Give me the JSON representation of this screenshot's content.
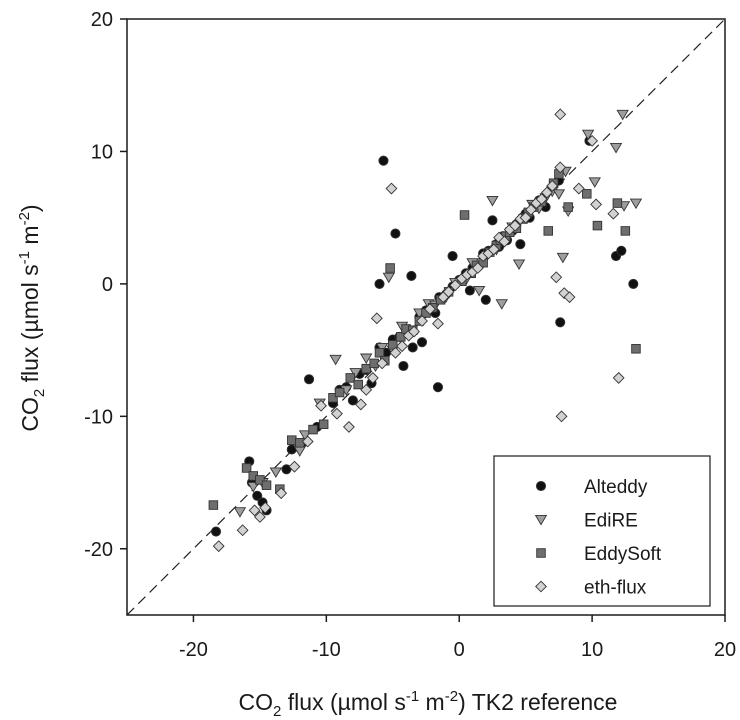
{
  "chart_data": {
    "type": "scatter",
    "xlabel": {
      "pre": "CO",
      "sub": "2",
      "mid1": " flux (µmol s",
      "sup1": "-1",
      "mid2": " m",
      "sup2": "-2",
      "post": ") TK2 reference"
    },
    "ylabel": {
      "pre": "CO",
      "sub": "2",
      "mid1": " flux (µmol s",
      "sup1": "-1",
      "mid2": " m",
      "sup2": "-2",
      "post": ")"
    },
    "xlim": [
      -25,
      20
    ],
    "ylim": [
      -25,
      20
    ],
    "x_ticks": [
      -20,
      -10,
      0,
      10,
      20
    ],
    "y_ticks": [
      -20,
      -10,
      0,
      10,
      20
    ],
    "x_tick_labels": [
      "-20",
      "-10",
      "0",
      "10",
      "20"
    ],
    "y_tick_labels": [
      "-20",
      "-10",
      "0",
      "10",
      "20"
    ],
    "reference_line": {
      "style": "dashed",
      "from": [
        -25,
        -25
      ],
      "to": [
        20,
        20
      ]
    },
    "legend_position": "bottom-right",
    "grid": false,
    "series": [
      {
        "name": "Alteddy",
        "marker": "circle",
        "color": "#111111",
        "points": [
          [
            -18.3,
            -18.7
          ],
          [
            -15.8,
            -13.4
          ],
          [
            -15.6,
            -15.0
          ],
          [
            -15.2,
            -16.0
          ],
          [
            -14.8,
            -16.5
          ],
          [
            -14.5,
            -17.1
          ],
          [
            -13.0,
            -14.0
          ],
          [
            -12.6,
            -12.5
          ],
          [
            -11.8,
            -12.0
          ],
          [
            -11.3,
            -7.2
          ],
          [
            -10.7,
            -10.8
          ],
          [
            -9.5,
            -9.0
          ],
          [
            -9.0,
            -8.0
          ],
          [
            -8.5,
            -7.8
          ],
          [
            -8.0,
            -8.8
          ],
          [
            -7.5,
            -6.8
          ],
          [
            -7.0,
            -6.5
          ],
          [
            -6.6,
            -7.5
          ],
          [
            -6.0,
            0.0
          ],
          [
            -6.0,
            -4.8
          ],
          [
            -5.7,
            9.3
          ],
          [
            -5.5,
            -5.2
          ],
          [
            -5.0,
            -4.2
          ],
          [
            -4.8,
            3.8
          ],
          [
            -4.5,
            -4.0
          ],
          [
            -4.2,
            -6.2
          ],
          [
            -4.0,
            -3.5
          ],
          [
            -3.6,
            0.6
          ],
          [
            -3.5,
            -4.8
          ],
          [
            -3.0,
            -2.5
          ],
          [
            -2.8,
            -4.4
          ],
          [
            -2.5,
            -2.0
          ],
          [
            -2.0,
            -1.8
          ],
          [
            -1.8,
            -2.2
          ],
          [
            -1.6,
            -7.8
          ],
          [
            -1.5,
            -1.0
          ],
          [
            -1.0,
            -0.8
          ],
          [
            -0.5,
            2.1
          ],
          [
            -0.5,
            -0.2
          ],
          [
            0.0,
            0.3
          ],
          [
            0.5,
            0.8
          ],
          [
            0.8,
            -0.5
          ],
          [
            1.0,
            1.2
          ],
          [
            1.5,
            1.4
          ],
          [
            1.8,
            2.3
          ],
          [
            2.0,
            -1.2
          ],
          [
            2.2,
            2.5
          ],
          [
            2.5,
            4.8
          ],
          [
            2.8,
            3.0
          ],
          [
            3.0,
            2.8
          ],
          [
            3.3,
            3.6
          ],
          [
            3.6,
            3.3
          ],
          [
            4.0,
            4.0
          ],
          [
            4.3,
            4.5
          ],
          [
            4.6,
            3.0
          ],
          [
            5.0,
            5.3
          ],
          [
            5.3,
            5.0
          ],
          [
            5.6,
            5.8
          ],
          [
            6.0,
            6.3
          ],
          [
            6.5,
            5.8
          ],
          [
            7.0,
            7.2
          ],
          [
            7.5,
            7.8
          ],
          [
            7.6,
            -2.9
          ],
          [
            9.8,
            10.8
          ],
          [
            11.8,
            2.1
          ],
          [
            12.2,
            2.5
          ],
          [
            13.1,
            0.0
          ]
        ]
      },
      {
        "name": "EdiRE",
        "marker": "triangle-down",
        "color": "#9e9e9e",
        "points": [
          [
            -16.5,
            -17.2
          ],
          [
            -15.5,
            -15.3
          ],
          [
            -14.8,
            -15.0
          ],
          [
            -13.8,
            -14.2
          ],
          [
            -12.0,
            -12.6
          ],
          [
            -11.6,
            -11.4
          ],
          [
            -10.5,
            -9.0
          ],
          [
            -9.3,
            -5.7
          ],
          [
            -8.5,
            -8.0
          ],
          [
            -7.8,
            -6.7
          ],
          [
            -7.0,
            -5.6
          ],
          [
            -6.3,
            -6.2
          ],
          [
            -5.8,
            -4.8
          ],
          [
            -5.3,
            0.5
          ],
          [
            -5.0,
            -5.0
          ],
          [
            -4.3,
            -3.2
          ],
          [
            -3.8,
            -3.7
          ],
          [
            -3.0,
            -2.2
          ],
          [
            -2.3,
            -1.5
          ],
          [
            -1.8,
            -1.6
          ],
          [
            -1.0,
            -1.0
          ],
          [
            -0.3,
            0.1
          ],
          [
            0.5,
            0.3
          ],
          [
            1.0,
            1.6
          ],
          [
            1.5,
            -0.5
          ],
          [
            2.0,
            2.0
          ],
          [
            2.5,
            6.3
          ],
          [
            2.8,
            2.6
          ],
          [
            3.2,
            -1.5
          ],
          [
            3.5,
            3.3
          ],
          [
            4.0,
            4.3
          ],
          [
            4.5,
            1.5
          ],
          [
            5.0,
            5.0
          ],
          [
            5.5,
            6.0
          ],
          [
            6.0,
            5.7
          ],
          [
            6.5,
            6.5
          ],
          [
            7.0,
            7.0
          ],
          [
            7.5,
            6.8
          ],
          [
            7.8,
            2.0
          ],
          [
            8.0,
            8.5
          ],
          [
            8.2,
            5.5
          ],
          [
            9.7,
            11.3
          ],
          [
            10.2,
            7.7
          ],
          [
            11.8,
            10.3
          ],
          [
            12.3,
            12.8
          ],
          [
            12.4,
            5.9
          ],
          [
            13.3,
            6.1
          ]
        ]
      },
      {
        "name": "EddySoft",
        "marker": "square",
        "color": "#6e6e6e",
        "points": [
          [
            -18.5,
            -16.7
          ],
          [
            -16.0,
            -13.9
          ],
          [
            -15.5,
            -14.5
          ],
          [
            -15.0,
            -14.8
          ],
          [
            -14.5,
            -15.2
          ],
          [
            -13.5,
            -15.5
          ],
          [
            -12.6,
            -11.8
          ],
          [
            -12.0,
            -12.0
          ],
          [
            -11.0,
            -11.0
          ],
          [
            -10.2,
            -10.6
          ],
          [
            -9.5,
            -8.6
          ],
          [
            -9.0,
            -8.2
          ],
          [
            -8.2,
            -7.1
          ],
          [
            -7.6,
            -7.6
          ],
          [
            -7.0,
            -6.4
          ],
          [
            -6.4,
            -6.0
          ],
          [
            -6.0,
            -5.2
          ],
          [
            -5.6,
            -5.8
          ],
          [
            -5.2,
            1.2
          ],
          [
            -5.0,
            -4.6
          ],
          [
            -4.4,
            -4.0
          ],
          [
            -4.0,
            -3.4
          ],
          [
            -3.5,
            -3.5
          ],
          [
            -3.0,
            -2.8
          ],
          [
            -2.5,
            -2.2
          ],
          [
            -2.0,
            -1.8
          ],
          [
            -1.4,
            -1.2
          ],
          [
            -0.8,
            -0.6
          ],
          [
            0.2,
            0.2
          ],
          [
            0.4,
            5.2
          ],
          [
            0.9,
            0.8
          ],
          [
            1.3,
            1.4
          ],
          [
            1.8,
            1.6
          ],
          [
            2.3,
            2.4
          ],
          [
            2.8,
            2.9
          ],
          [
            3.1,
            3.3
          ],
          [
            3.5,
            3.6
          ],
          [
            3.8,
            3.9
          ],
          [
            4.3,
            4.2
          ],
          [
            4.8,
            4.9
          ],
          [
            5.2,
            5.4
          ],
          [
            5.6,
            5.8
          ],
          [
            6.2,
            6.2
          ],
          [
            6.7,
            4.0
          ],
          [
            7.1,
            7.6
          ],
          [
            7.5,
            8.3
          ],
          [
            8.2,
            5.8
          ],
          [
            9.6,
            6.8
          ],
          [
            10.4,
            4.4
          ],
          [
            11.9,
            6.1
          ],
          [
            12.5,
            4.0
          ],
          [
            13.3,
            -4.9
          ]
        ]
      },
      {
        "name": "eth-flux",
        "marker": "diamond",
        "color": "#d2d2d2",
        "points": [
          [
            -18.1,
            -19.8
          ],
          [
            -16.3,
            -18.6
          ],
          [
            -15.4,
            -17.1
          ],
          [
            -15.0,
            -17.6
          ],
          [
            -14.6,
            -16.9
          ],
          [
            -13.4,
            -15.8
          ],
          [
            -12.4,
            -13.8
          ],
          [
            -11.4,
            -11.9
          ],
          [
            -10.4,
            -9.2
          ],
          [
            -9.2,
            -9.8
          ],
          [
            -8.3,
            -10.8
          ],
          [
            -7.4,
            -9.1
          ],
          [
            -7.0,
            -8.0
          ],
          [
            -6.5,
            -7.1
          ],
          [
            -6.2,
            -2.6
          ],
          [
            -5.8,
            -6.0
          ],
          [
            -5.1,
            7.2
          ],
          [
            -4.8,
            -5.2
          ],
          [
            -4.3,
            -4.7
          ],
          [
            -3.8,
            -3.9
          ],
          [
            -3.4,
            -3.6
          ],
          [
            -2.8,
            -2.8
          ],
          [
            -2.2,
            -1.9
          ],
          [
            -1.6,
            -3.0
          ],
          [
            -1.2,
            -1.0
          ],
          [
            -0.8,
            -0.6
          ],
          [
            -0.3,
            -0.1
          ],
          [
            0.2,
            0.4
          ],
          [
            0.6,
            0.7
          ],
          [
            1.0,
            0.9
          ],
          [
            1.4,
            1.2
          ],
          [
            1.8,
            2.1
          ],
          [
            2.2,
            2.3
          ],
          [
            2.6,
            2.6
          ],
          [
            3.0,
            3.5
          ],
          [
            3.4,
            3.2
          ],
          [
            3.8,
            4.1
          ],
          [
            4.2,
            4.4
          ],
          [
            4.6,
            4.9
          ],
          [
            5.0,
            5.0
          ],
          [
            5.4,
            5.6
          ],
          [
            5.8,
            6.1
          ],
          [
            6.2,
            6.4
          ],
          [
            6.6,
            6.9
          ],
          [
            7.0,
            7.4
          ],
          [
            7.3,
            0.5
          ],
          [
            7.6,
            8.8
          ],
          [
            7.6,
            12.8
          ],
          [
            7.7,
            -10.0
          ],
          [
            7.9,
            -0.7
          ],
          [
            8.3,
            -1.0
          ],
          [
            9.0,
            7.2
          ],
          [
            10.0,
            10.8
          ],
          [
            10.3,
            6.0
          ],
          [
            11.6,
            5.3
          ],
          [
            12.0,
            -7.1
          ]
        ]
      }
    ]
  }
}
